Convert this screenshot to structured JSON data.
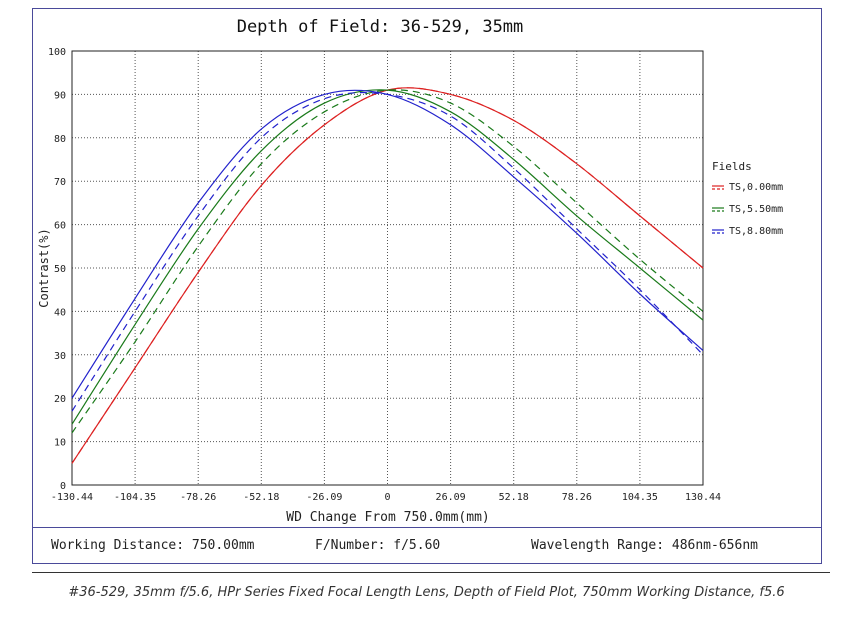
{
  "chart_data": {
    "type": "line",
    "title": "Depth of Field: 36-529, 35mm",
    "xlabel": "WD Change From 750.0mm(mm)",
    "ylabel": "Contrast(%)",
    "xlim": [
      -130.44,
      130.44
    ],
    "ylim": [
      0,
      100
    ],
    "x_ticks": [
      "-130.44",
      "-104.35",
      "-78.26",
      "-52.18",
      "-26.09",
      "0",
      "26.09",
      "52.18",
      "78.26",
      "104.35",
      "130.44"
    ],
    "y_ticks": [
      "0",
      "10",
      "20",
      "30",
      "40",
      "50",
      "60",
      "70",
      "80",
      "90",
      "100"
    ],
    "grid": true,
    "legend_title": "Fields",
    "legend_position": "right",
    "x": [
      -130.44,
      -104.35,
      -78.26,
      -52.18,
      -26.09,
      0,
      26.09,
      52.18,
      78.26,
      104.35,
      130.44
    ],
    "series": [
      {
        "name": "TS,0.00mm",
        "color": "#dd2222",
        "dash": false,
        "values": [
          5,
          27,
          49,
          69,
          83,
          91,
          90,
          84,
          74,
          62,
          50
        ]
      },
      {
        "name": "",
        "color": "#dd2222",
        "dash": true,
        "values": [
          5,
          27,
          49,
          69,
          83,
          91,
          90,
          84,
          74,
          62,
          50
        ]
      },
      {
        "name": "TS,5.50mm",
        "color": "#1a7a1a",
        "dash": false,
        "values": [
          14,
          37,
          59,
          77,
          88,
          91,
          86,
          75,
          62,
          50,
          38
        ]
      },
      {
        "name": "",
        "color": "#1a7a1a",
        "dash": true,
        "values": [
          12,
          33,
          55,
          74,
          86,
          91,
          88,
          78,
          65,
          52,
          40
        ]
      },
      {
        "name": "TS,8.80mm",
        "color": "#2222cc",
        "dash": false,
        "values": [
          20,
          43,
          65,
          82,
          90,
          90,
          83,
          71,
          58,
          44,
          31
        ]
      },
      {
        "name": "",
        "color": "#2222cc",
        "dash": true,
        "values": [
          17,
          40,
          62,
          80,
          89,
          90,
          85,
          73,
          59,
          45,
          30
        ]
      }
    ]
  },
  "footer": {
    "working_distance": "Working Distance: 750.00mm",
    "f_number": "F/Number: f/5.60",
    "wavelength": "Wavelength Range: 486nm-656nm"
  },
  "caption": "#36-529, 35mm f/5.6, HPr Series Fixed Focal Length Lens, Depth of Field Plot, 750mm Working Distance, f5.6"
}
